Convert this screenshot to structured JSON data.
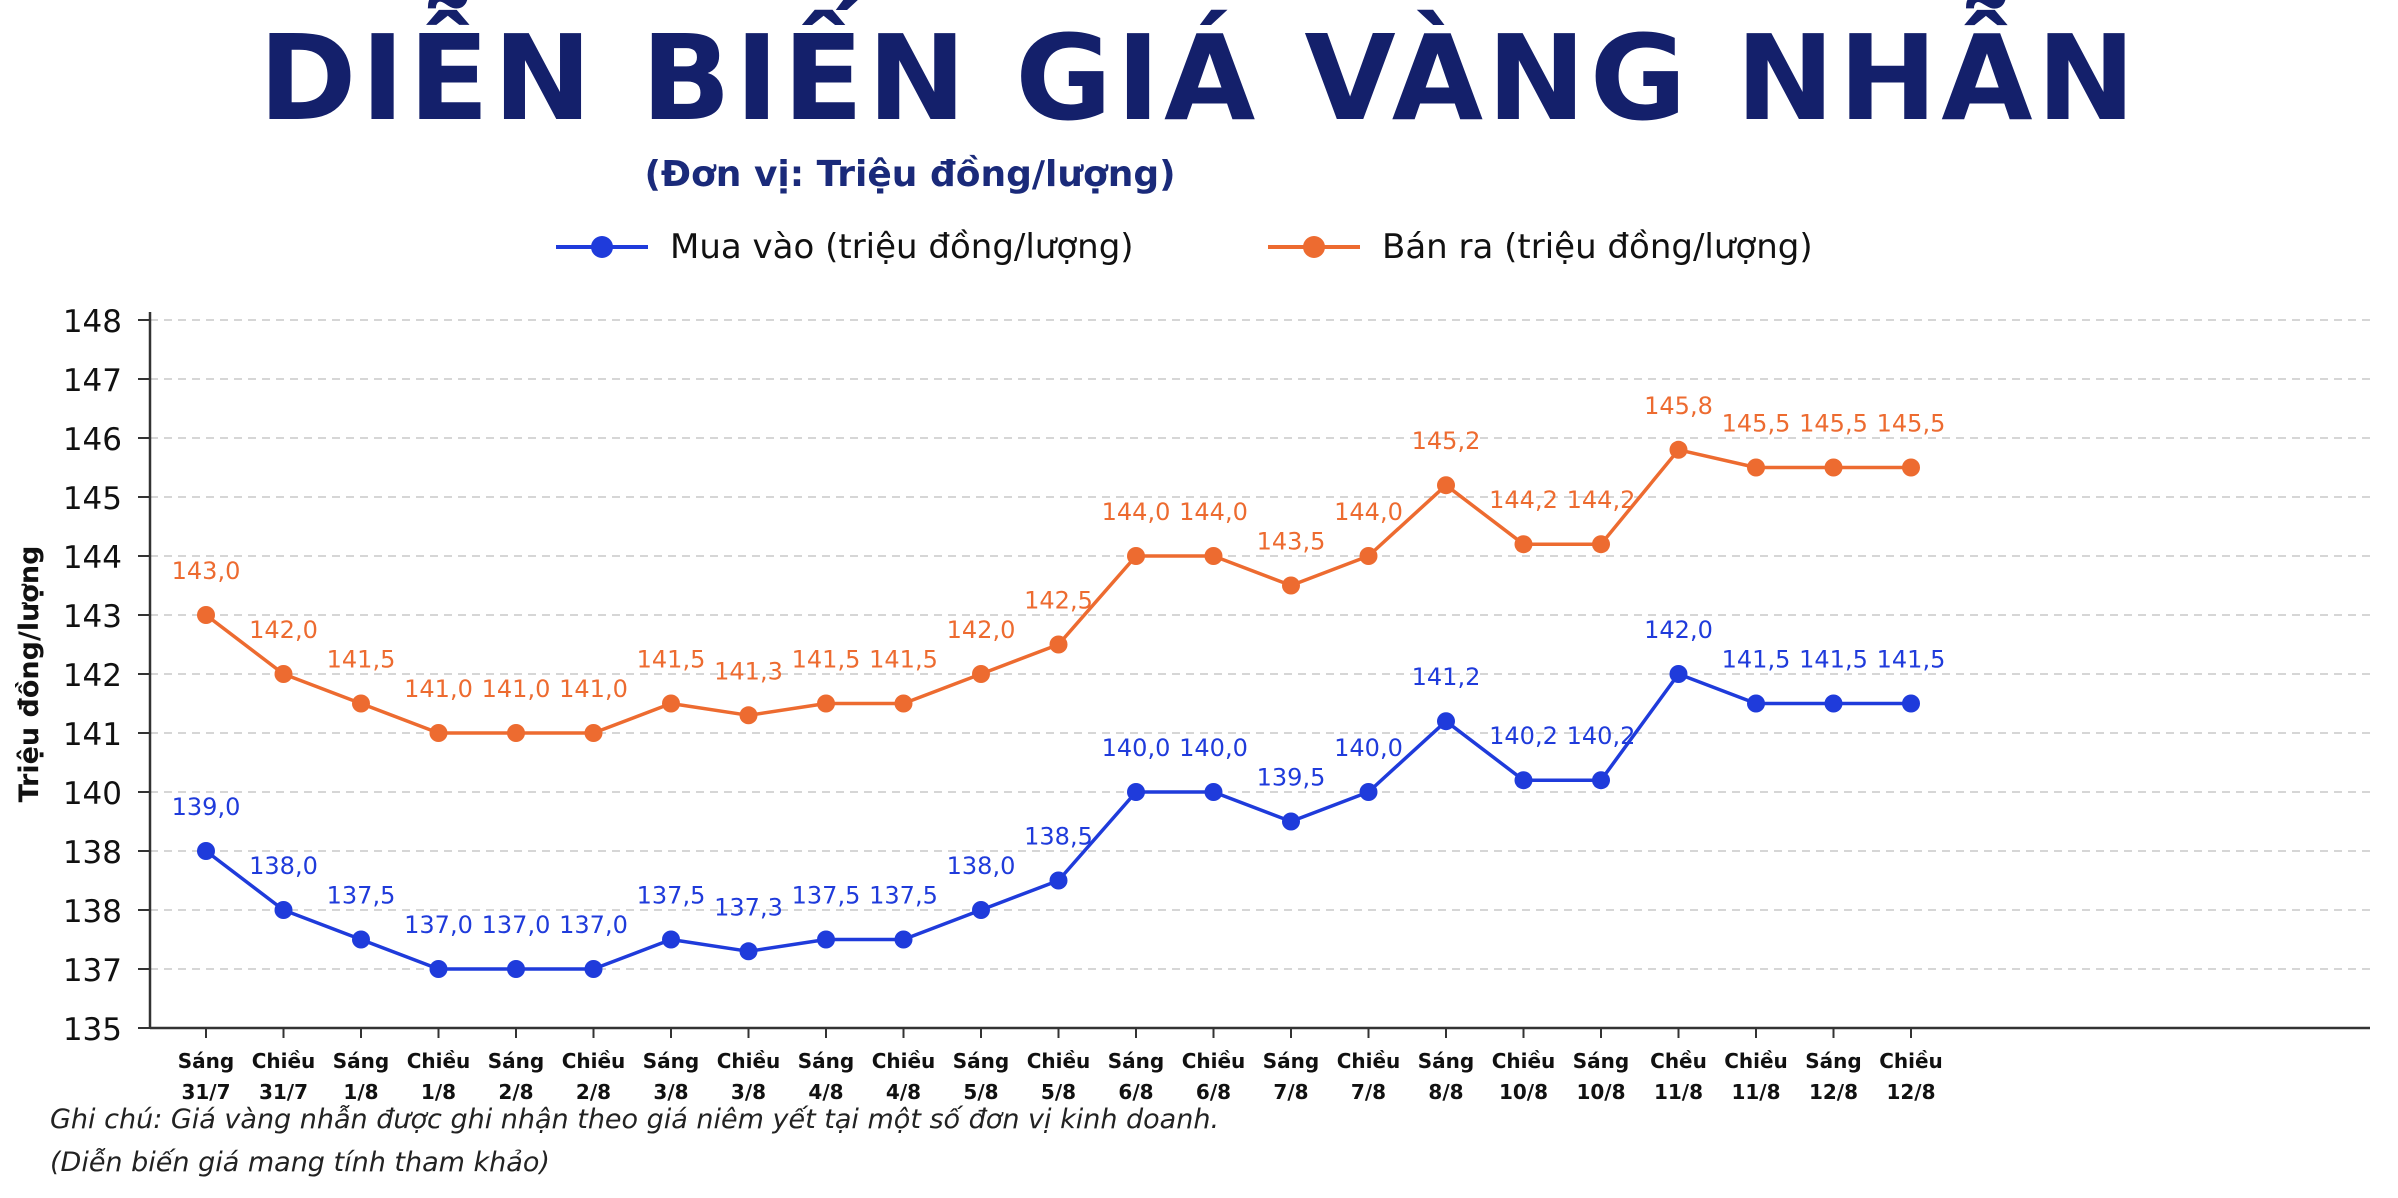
{
  "title": "DIỄN BIẾN GIÁ VÀNG NHẪN",
  "subtitle": "(Đơn vị: Triệu đồng/lượng)",
  "notes": {
    "line1": "Ghi chú: Giá vàng nhẫn được ghi nhận theo giá niêm yết tại một số đơn vị kinh doanh.",
    "line2": "(Diễn biến giá mang tính tham khảo)"
  },
  "colors": {
    "buy": "#1f3bdb",
    "sell": "#ed6b30",
    "grid": "#c8c8c8",
    "title": "#14206b"
  },
  "chart_data": {
    "type": "line",
    "ylabel": "Triệu  đồng/lượng",
    "y_ticks": [
      "148",
      "147",
      "146",
      "145",
      "144",
      "143",
      "142",
      "141",
      "140",
      "138",
      "138",
      "137",
      "135"
    ],
    "categories": [
      [
        "Sáng",
        "31/7"
      ],
      [
        "Chiều",
        "31/7"
      ],
      [
        "Sáng",
        "1/8"
      ],
      [
        "Chiều",
        "1/8"
      ],
      [
        "Sáng",
        "2/8"
      ],
      [
        "Chiều",
        "2/8"
      ],
      [
        "Sáng",
        "3/8"
      ],
      [
        "Chiều",
        "3/8"
      ],
      [
        "Sáng",
        "4/8"
      ],
      [
        "Chiều",
        "4/8"
      ],
      [
        "Sáng",
        "5/8"
      ],
      [
        "Chiều",
        "5/8"
      ],
      [
        "Sáng",
        "6/8"
      ],
      [
        "Chiều",
        "6/8"
      ],
      [
        "Sáng",
        "7/8"
      ],
      [
        "Chiều",
        "7/8"
      ],
      [
        "Sáng",
        "8/8"
      ],
      [
        "Chiều",
        "10/8"
      ],
      [
        "Sáng",
        "10/8"
      ],
      [
        "Chều",
        "11/8"
      ],
      [
        "Chiều",
        "11/8"
      ],
      [
        "Sáng",
        "12/8"
      ],
      [
        "Chiều",
        "12/8"
      ]
    ],
    "legend_position": "top",
    "grid": true,
    "series": [
      {
        "name": "Mua vào (triệu đồng/lượng)",
        "color": "#1f3bdb",
        "values": [
          139.0,
          138.0,
          137.5,
          137.0,
          137.0,
          137.0,
          137.5,
          137.3,
          137.5,
          137.5,
          138.0,
          138.5,
          140.0,
          140.0,
          139.5,
          140.0,
          141.2,
          140.2,
          140.2,
          142.0,
          141.5,
          141.5,
          141.5
        ],
        "labels": [
          "139,0",
          "138,0",
          "137,5",
          "137,0",
          "137,0",
          "137,0",
          "137,5",
          "137,3",
          "137,5",
          "137,5",
          "138,0",
          "138,5",
          "140,0",
          "140,0",
          "139,5",
          "140,0",
          "141,2",
          "140,2",
          "140,2",
          "142,0",
          "141,5",
          "141,5",
          "141,5"
        ]
      },
      {
        "name": "Bán ra (triệu đồng/lượng)",
        "color": "#ed6b30",
        "values": [
          143.0,
          142.0,
          141.5,
          141.0,
          141.0,
          141.0,
          141.5,
          141.3,
          141.5,
          141.5,
          142.0,
          142.5,
          144.0,
          144.0,
          143.5,
          144.0,
          145.2,
          144.2,
          144.2,
          145.8,
          145.5,
          145.5,
          145.5
        ],
        "labels": [
          "143,0",
          "142,0",
          "141,5",
          "141,0",
          "141,0",
          "141,0",
          "141,5",
          "141,3",
          "141,5",
          "141,5",
          "142,0",
          "142,5",
          "144,0",
          "144,0",
          "143,5",
          "144,0",
          "145,2",
          "144,2",
          "144,2",
          "145,8",
          "145,5",
          "145,5",
          "145,5"
        ]
      }
    ]
  }
}
